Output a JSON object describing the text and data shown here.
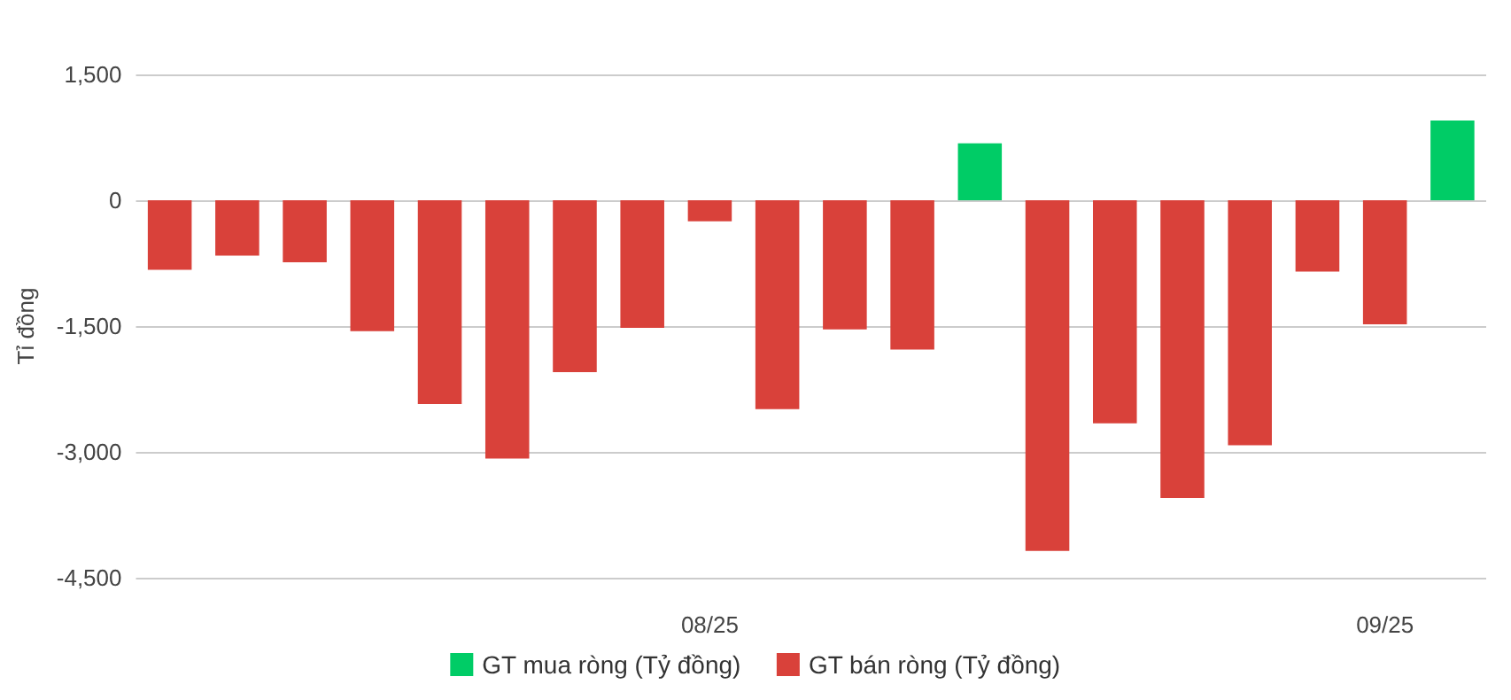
{
  "chart_data": {
    "type": "bar",
    "ylabel": "Tỉ đồng",
    "categories": [
      null,
      null,
      null,
      null,
      null,
      null,
      null,
      null,
      "08/25",
      null,
      null,
      null,
      null,
      null,
      null,
      null,
      null,
      null,
      "09/25",
      null
    ],
    "series": [
      {
        "name": "GT mua ròng (Tỷ đồng)",
        "color": "#00cc66",
        "values": [
          null,
          null,
          null,
          null,
          null,
          null,
          null,
          null,
          null,
          null,
          null,
          null,
          680,
          null,
          null,
          null,
          null,
          null,
          null,
          950
        ]
      },
      {
        "name": "GT bán ròng (Tỷ đồng)",
        "color": "#d9413a",
        "values": [
          -830,
          -660,
          -740,
          -1560,
          -2430,
          -3080,
          -2050,
          -1520,
          -250,
          -2490,
          -1540,
          -1780,
          null,
          -4180,
          -2660,
          -3550,
          -2920,
          -850,
          -1480,
          null
        ]
      }
    ],
    "ylim": [
      -4500,
      1500
    ],
    "yticks": [
      {
        "value": -4500,
        "label": "-4,500"
      },
      {
        "value": -3000,
        "label": "-3,000"
      },
      {
        "value": -1500,
        "label": "-1,500"
      },
      {
        "value": 0,
        "label": "0"
      },
      {
        "value": 1500,
        "label": "1,500"
      }
    ],
    "grid": "y",
    "legend": "bottom"
  }
}
